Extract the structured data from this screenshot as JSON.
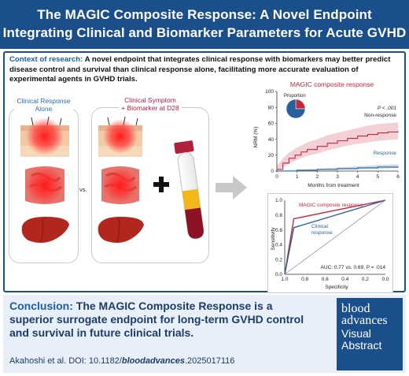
{
  "header": {
    "title_line1": "The MAGIC Composite Response: A Novel Endpoint",
    "title_line2": "Integrating Clinical and Biomarker Parameters for Acute GVHD"
  },
  "context": {
    "label": "Context of research:",
    "text": " A novel endpoint that integrates clinical response with biomarkers may better predict disease control and survival than clinical response alone, facilitating more accurate evaluation of experimental agents in GVHD trials."
  },
  "panels": {
    "left_title_line1": "Clinical Response",
    "left_title_line2": "Alone",
    "right_title_line1": "Clinical Symptom",
    "right_title_line2": "+ Biomarker at D28",
    "vs": "vs."
  },
  "chart_data": [
    {
      "type": "line",
      "title": "MAGIC composite response",
      "xlabel": "Months from treatment",
      "ylabel": "NRM (%)",
      "xlim": [
        0,
        6
      ],
      "ylim": [
        0,
        100
      ],
      "xticks": [
        "0",
        "1",
        "2",
        "3",
        "4",
        "5",
        "6"
      ],
      "yticks": [
        "0",
        "20",
        "40",
        "60",
        "80",
        "100"
      ],
      "annotation_p": "P < .001",
      "inset_label": "Proportion",
      "inset_pie": [
        {
          "name": "Non-response",
          "value": 25,
          "color": "#c4283e"
        },
        {
          "name": "Response",
          "value": 75,
          "color": "#2a5f9e"
        }
      ],
      "series": [
        {
          "name": "Non-response",
          "color": "#c4283e",
          "x": [
            0,
            0.3,
            0.6,
            0.9,
            1.2,
            1.5,
            2.0,
            2.5,
            3.0,
            3.5,
            4.0,
            4.5,
            5.0,
            5.5,
            6.0
          ],
          "values": [
            2,
            10,
            16,
            20,
            24,
            27,
            31,
            35,
            38,
            41,
            44,
            46,
            48,
            49,
            50
          ],
          "ci_low": [
            0,
            5,
            9,
            13,
            16,
            19,
            22,
            26,
            29,
            32,
            34,
            36,
            38,
            39,
            40
          ],
          "ci_high": [
            6,
            16,
            23,
            28,
            32,
            36,
            40,
            45,
            48,
            51,
            54,
            57,
            59,
            60,
            61
          ]
        },
        {
          "name": "Response",
          "color": "#2a5f9e",
          "x": [
            0,
            1.0,
            2.0,
            3.0,
            4.0,
            5.0,
            6.0
          ],
          "values": [
            0,
            1,
            2,
            3,
            4,
            5,
            6
          ],
          "ci_low": [
            0,
            0,
            1,
            1.5,
            2,
            3,
            3.5
          ],
          "ci_high": [
            0.5,
            2,
            3,
            4.5,
            6,
            7.5,
            8.5
          ]
        }
      ]
    },
    {
      "type": "line",
      "xlabel": "Specificity",
      "ylabel": "Sensitivity",
      "xticks": [
        "1.0",
        "0.8",
        "0.6",
        "0.4",
        "0.2",
        "0.0"
      ],
      "yticks": [
        "0.0",
        "0.2",
        "0.4",
        "0.6",
        "0.8",
        "1.0"
      ],
      "annotation_auc": "AUC: 0.77 vs. 0.69, P = .014",
      "series": [
        {
          "name": "MAGIC composite response",
          "color": "#c4283e",
          "x": [
            1.0,
            0.91,
            0.0
          ],
          "values": [
            0.0,
            0.75,
            1.0
          ]
        },
        {
          "name": "Clinical response",
          "color": "#2a5f9e",
          "x": [
            1.0,
            0.91,
            0.0
          ],
          "values": [
            0.0,
            0.63,
            1.0
          ]
        },
        {
          "name": "reference",
          "color": "#888888",
          "x": [
            1.0,
            0.0
          ],
          "values": [
            0.0,
            1.0
          ]
        }
      ]
    }
  ],
  "conclusion": {
    "label": "Conclusion:",
    "text": " The MAGIC Composite Response is a superior surrogate endpoint for long-term GVHD control and survival in future clinical trials."
  },
  "citation": {
    "prefix": "Akahoshi et al. DOI: 10.1182/",
    "italic": "bloodadvances",
    "suffix": ".2025017116"
  },
  "logo": {
    "line1": "blood",
    "line2": "advances",
    "line3": "Visual",
    "line4": "Abstract"
  },
  "colors": {
    "brand_blue": "#1a4f8c",
    "accent_red": "#c4283e",
    "response_blue": "#2a5f9e"
  }
}
